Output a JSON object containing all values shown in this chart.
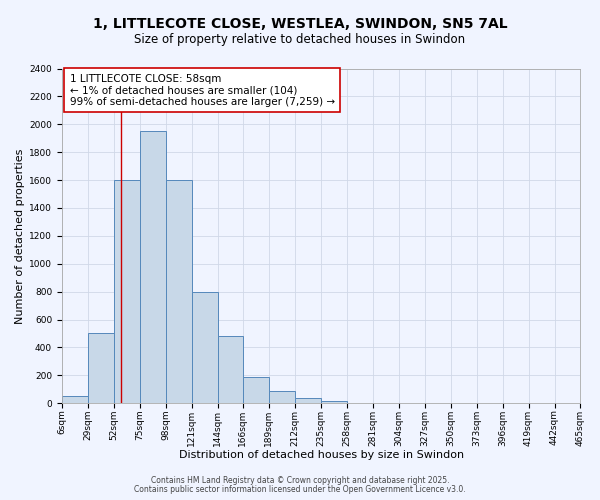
{
  "title_line1": "1, LITTLECOTE CLOSE, WESTLEA, SWINDON, SN5 7AL",
  "title_line2": "Size of property relative to detached houses in Swindon",
  "xlabel": "Distribution of detached houses by size in Swindon",
  "ylabel": "Number of detached properties",
  "bin_edges": [
    6,
    29,
    52,
    75,
    98,
    121,
    144,
    166,
    189,
    212,
    235,
    258,
    281,
    304,
    327,
    350,
    373,
    396,
    419,
    442,
    465
  ],
  "bar_heights": [
    50,
    500,
    1600,
    1950,
    1600,
    800,
    480,
    190,
    90,
    35,
    15,
    5,
    5,
    2,
    1,
    0,
    0,
    0,
    0,
    5,
    0
  ],
  "bar_color": "#c8d8e8",
  "bar_edge_color": "#5588bb",
  "grid_color": "#d0d8e8",
  "background_color": "#f0f4ff",
  "red_line_x": 58,
  "red_line_color": "#cc0000",
  "annotation_line1": "1 LITTLECOTE CLOSE: 58sqm",
  "annotation_line2": "← 1% of detached houses are smaller (104)",
  "annotation_line3": "99% of semi-detached houses are larger (7,259) →",
  "annotation_box_color": "#ffffff",
  "annotation_box_edge": "#cc0000",
  "ylim": [
    0,
    2400
  ],
  "yticks": [
    0,
    200,
    400,
    600,
    800,
    1000,
    1200,
    1400,
    1600,
    1800,
    2000,
    2200,
    2400
  ],
  "footnote1": "Contains HM Land Registry data © Crown copyright and database right 2025.",
  "footnote2": "Contains public sector information licensed under the Open Government Licence v3.0.",
  "title_fontsize": 10,
  "subtitle_fontsize": 8.5,
  "axis_label_fontsize": 8,
  "tick_fontsize": 6.5,
  "annotation_fontsize": 7.5,
  "footnote_fontsize": 5.5
}
